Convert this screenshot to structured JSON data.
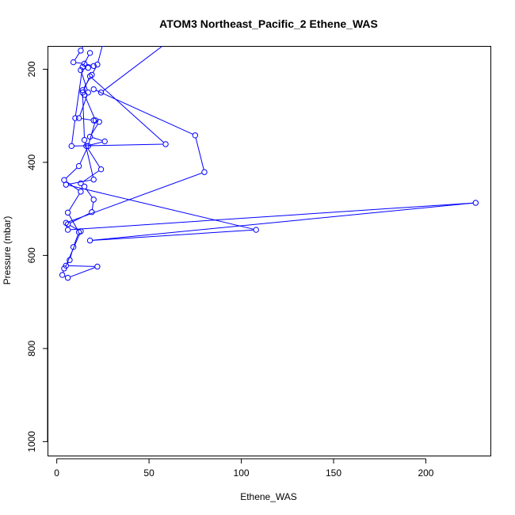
{
  "chart_data": {
    "type": "line",
    "title": "ATOM3 Northeast_Pacific_2 Ethene_WAS",
    "xlabel": "Ethene_WAS",
    "ylabel": "Pressure (mbar)",
    "xlim": [
      -5,
      235
    ],
    "ylim": [
      1030,
      150
    ],
    "y_reversed": true,
    "grid": false,
    "x_ticks": [
      0,
      50,
      100,
      150,
      200
    ],
    "y_ticks": [
      200,
      400,
      600,
      800,
      1000
    ],
    "series_color": "#0000ff",
    "marker": "open-circle",
    "series": [
      {
        "points": [
          [
            25,
            145
          ],
          [
            22,
            190
          ],
          [
            19,
            212
          ],
          [
            14,
            245
          ],
          [
            15,
            255
          ],
          [
            21,
            310
          ],
          [
            17,
            365
          ],
          [
            12,
            408
          ],
          [
            4,
            438
          ],
          [
            13,
            463
          ],
          [
            6,
            508
          ],
          [
            12,
            550
          ],
          [
            9,
            582
          ],
          [
            7,
            610
          ],
          [
            4,
            628
          ],
          [
            3,
            642
          ],
          [
            6,
            648
          ],
          [
            22,
            624
          ],
          [
            5,
            622
          ],
          [
            13,
            548
          ],
          [
            6,
            533
          ],
          [
            19,
            507
          ],
          [
            20,
            480
          ],
          [
            15,
            452
          ],
          [
            13,
            445
          ],
          [
            24,
            415
          ],
          [
            16,
            365
          ],
          [
            26,
            355
          ],
          [
            18,
            345
          ],
          [
            23,
            313
          ],
          [
            20,
            310
          ],
          [
            12,
            305
          ],
          [
            17,
            250
          ],
          [
            13,
            202
          ],
          [
            17,
            197
          ],
          [
            20,
            193
          ],
          [
            15,
            188
          ],
          [
            9,
            185
          ],
          [
            13,
            160
          ],
          [
            16,
            140
          ]
        ]
      },
      {
        "points": [
          [
            60,
            142
          ],
          [
            24,
            250
          ],
          [
            20,
            243
          ],
          [
            75,
            342
          ],
          [
            80,
            421
          ],
          [
            5,
            530
          ],
          [
            6,
            545
          ],
          [
            227,
            487
          ],
          [
            18,
            568
          ],
          [
            108,
            545
          ],
          [
            5,
            448
          ],
          [
            20,
            437
          ],
          [
            15,
            352
          ],
          [
            14,
            250
          ],
          [
            18,
            215
          ],
          [
            59,
            361
          ],
          [
            8,
            365
          ],
          [
            10,
            305
          ],
          [
            14,
            195
          ],
          [
            18,
            165
          ]
        ]
      }
    ]
  }
}
